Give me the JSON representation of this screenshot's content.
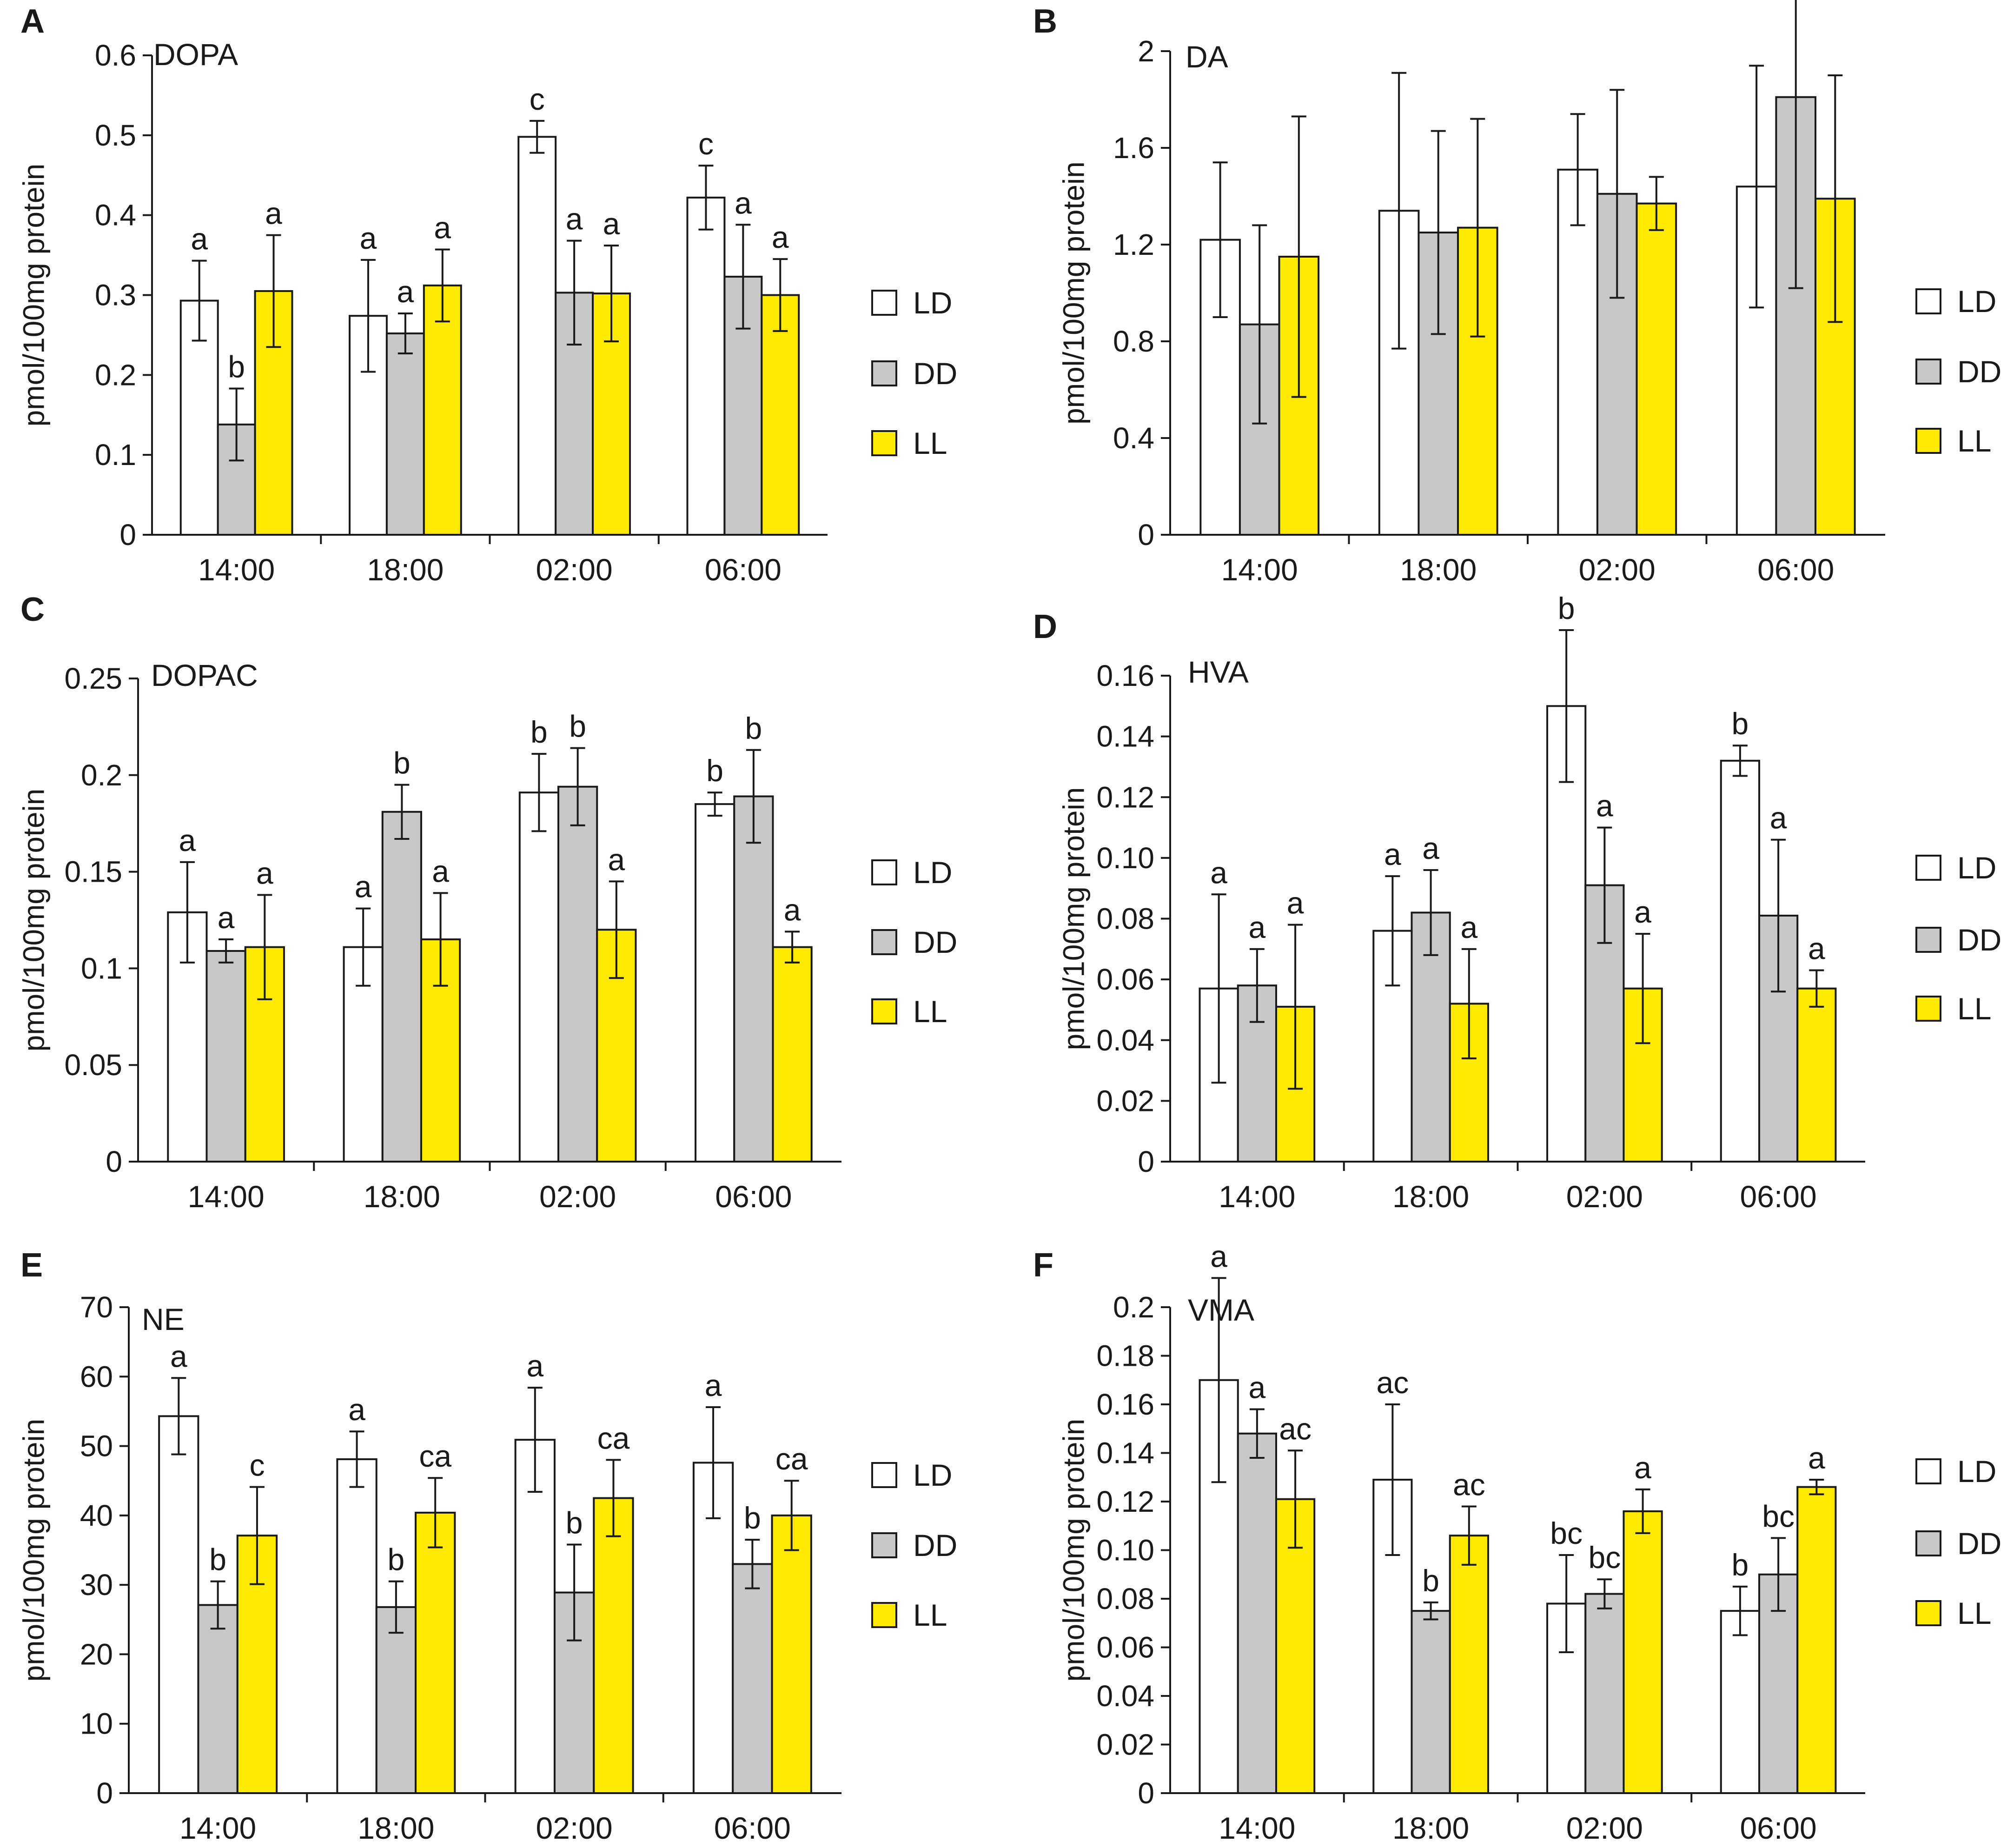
{
  "figure": {
    "colors": {
      "LD": "#ffffff",
      "DD": "#c8c8c8",
      "LL": "#ffea00",
      "stroke": "#1a1a1a"
    }
  },
  "chart_data": [
    {
      "panel": "A",
      "type": "bar",
      "title": "DOPA",
      "ylabel": "pmol/100mg protein",
      "categories": [
        "14:00",
        "18:00",
        "02:00",
        "06:00"
      ],
      "ylim": [
        0,
        0.6
      ],
      "yticks": [
        "0",
        "0.1",
        "0.2",
        "0.3",
        "0.4",
        "0.5",
        "0.6"
      ],
      "legend": [
        "LD",
        "DD",
        "LL"
      ],
      "series": [
        {
          "name": "LD",
          "values": [
            0.293,
            0.274,
            0.498,
            0.422
          ],
          "errors": [
            0.05,
            0.07,
            0.02,
            0.04
          ],
          "labels": [
            "a",
            "a",
            "c",
            "c"
          ]
        },
        {
          "name": "DD",
          "values": [
            0.138,
            0.252,
            0.303,
            0.323
          ],
          "errors": [
            0.045,
            0.025,
            0.065,
            0.065
          ],
          "labels": [
            "b",
            "a",
            "a",
            "a"
          ]
        },
        {
          "name": "LL",
          "values": [
            0.305,
            0.312,
            0.302,
            0.3
          ],
          "errors": [
            0.07,
            0.045,
            0.06,
            0.045
          ],
          "labels": [
            "a",
            "a",
            "a",
            "a"
          ]
        }
      ]
    },
    {
      "panel": "B",
      "type": "bar",
      "title": "DA",
      "ylabel": "pmol/100mg protein",
      "categories": [
        "14:00",
        "18:00",
        "02:00",
        "06:00"
      ],
      "ylim": [
        0,
        2
      ],
      "yticks": [
        "0",
        "0.4",
        "0.8",
        "1.2",
        "1.6",
        "2"
      ],
      "legend": [
        "LD",
        "DD",
        "LL"
      ],
      "series": [
        {
          "name": "LD",
          "values": [
            1.22,
            1.34,
            1.51,
            1.44
          ],
          "errors": [
            0.32,
            0.57,
            0.23,
            0.5
          ],
          "labels": [
            "",
            "",
            "",
            ""
          ]
        },
        {
          "name": "DD",
          "values": [
            0.87,
            1.25,
            1.41,
            1.81
          ],
          "errors": [
            0.41,
            0.42,
            0.43,
            0.79
          ],
          "labels": [
            "",
            "",
            "",
            ""
          ]
        },
        {
          "name": "LL",
          "values": [
            1.15,
            1.27,
            1.37,
            1.39
          ],
          "errors": [
            0.58,
            0.45,
            0.11,
            0.51
          ],
          "labels": [
            "",
            "",
            "",
            ""
          ]
        }
      ]
    },
    {
      "panel": "C",
      "type": "bar",
      "title": "DOPAC",
      "ylabel": "pmol/100mg protein",
      "categories": [
        "14:00",
        "18:00",
        "02:00",
        "06:00"
      ],
      "ylim": [
        0,
        0.25
      ],
      "yticks": [
        "0",
        "0.05",
        "0.1",
        "0.15",
        "0.2",
        "0.25"
      ],
      "legend": [
        "LD",
        "DD",
        "LL"
      ],
      "series": [
        {
          "name": "LD",
          "values": [
            0.129,
            0.111,
            0.191,
            0.185
          ],
          "errors": [
            0.026,
            0.02,
            0.02,
            0.006
          ],
          "labels": [
            "a",
            "a",
            "b",
            "b"
          ]
        },
        {
          "name": "DD",
          "values": [
            0.109,
            0.181,
            0.194,
            0.189
          ],
          "errors": [
            0.006,
            0.014,
            0.02,
            0.024
          ],
          "labels": [
            "a",
            "b",
            "b",
            "b"
          ]
        },
        {
          "name": "LL",
          "values": [
            0.111,
            0.115,
            0.12,
            0.111
          ],
          "errors": [
            0.027,
            0.024,
            0.025,
            0.008
          ],
          "labels": [
            "a",
            "a",
            "a",
            "a"
          ]
        }
      ]
    },
    {
      "panel": "D",
      "type": "bar",
      "title": "HVA",
      "ylabel": "pmol/100mg protein",
      "categories": [
        "14:00",
        "18:00",
        "02:00",
        "06:00"
      ],
      "ylim": [
        0,
        0.16
      ],
      "yticks": [
        "0",
        "0.02",
        "0.04",
        "0.06",
        "0.08",
        "0.10",
        "0.12",
        "0.14",
        "0.16"
      ],
      "legend": [
        "LD",
        "DD",
        "LL"
      ],
      "series": [
        {
          "name": "LD",
          "values": [
            0.057,
            0.076,
            0.15,
            0.132
          ],
          "errors": [
            0.031,
            0.018,
            0.025,
            0.005
          ],
          "labels": [
            "a",
            "a",
            "b",
            "b"
          ]
        },
        {
          "name": "DD",
          "values": [
            0.058,
            0.082,
            0.091,
            0.081
          ],
          "errors": [
            0.012,
            0.014,
            0.019,
            0.025
          ],
          "labels": [
            "a",
            "a",
            "a",
            "a"
          ]
        },
        {
          "name": "LL",
          "values": [
            0.051,
            0.052,
            0.057,
            0.057
          ],
          "errors": [
            0.027,
            0.018,
            0.018,
            0.006
          ],
          "labels": [
            "a",
            "a",
            "a",
            "a"
          ]
        }
      ]
    },
    {
      "panel": "E",
      "type": "bar",
      "title": "NE",
      "ylabel": "pmol/100mg protein",
      "categories": [
        "14:00",
        "18:00",
        "02:00",
        "06:00"
      ],
      "ylim": [
        0,
        70
      ],
      "yticks": [
        "0",
        "10",
        "20",
        "30",
        "40",
        "50",
        "60",
        "70"
      ],
      "legend": [
        "LD",
        "DD",
        "LL"
      ],
      "series": [
        {
          "name": "LD",
          "values": [
            54.3,
            48.1,
            50.9,
            47.6
          ],
          "errors": [
            5.5,
            4.0,
            7.5,
            8.0
          ],
          "labels": [
            "a",
            "a",
            "a",
            "a"
          ]
        },
        {
          "name": "DD",
          "values": [
            27.1,
            26.8,
            28.9,
            33.0
          ],
          "errors": [
            3.4,
            3.7,
            6.9,
            3.5
          ],
          "labels": [
            "b",
            "b",
            "b",
            "b"
          ]
        },
        {
          "name": "LL",
          "values": [
            37.1,
            40.4,
            42.5,
            40.0
          ],
          "errors": [
            7.0,
            5.0,
            5.5,
            5.0
          ],
          "labels": [
            "c",
            "ca",
            "ca",
            "ca"
          ]
        }
      ]
    },
    {
      "panel": "F",
      "type": "bar",
      "title": "VMA",
      "ylabel": "pmol/100mg protein",
      "categories": [
        "14:00",
        "18:00",
        "02:00",
        "06:00"
      ],
      "ylim": [
        0,
        0.2
      ],
      "yticks": [
        "0",
        "0.02",
        "0.04",
        "0.06",
        "0.08",
        "0.10",
        "0.12",
        "0.14",
        "0.16",
        "0.18",
        "0.2"
      ],
      "legend": [
        "LD",
        "DD",
        "LL"
      ],
      "series": [
        {
          "name": "LD",
          "values": [
            0.17,
            0.129,
            0.078,
            0.075
          ],
          "errors": [
            0.042,
            0.031,
            0.02,
            0.01
          ],
          "labels": [
            "a",
            "ac",
            "bc",
            "b"
          ]
        },
        {
          "name": "DD",
          "values": [
            0.148,
            0.075,
            0.082,
            0.09
          ],
          "errors": [
            0.01,
            0.0035,
            0.006,
            0.015
          ],
          "labels": [
            "a",
            "b",
            "bc",
            "bc"
          ]
        },
        {
          "name": "LL",
          "values": [
            0.121,
            0.106,
            0.116,
            0.126
          ],
          "errors": [
            0.02,
            0.012,
            0.009,
            0.003
          ],
          "labels": [
            "ac",
            "ac",
            "a",
            "a"
          ]
        }
      ]
    }
  ]
}
